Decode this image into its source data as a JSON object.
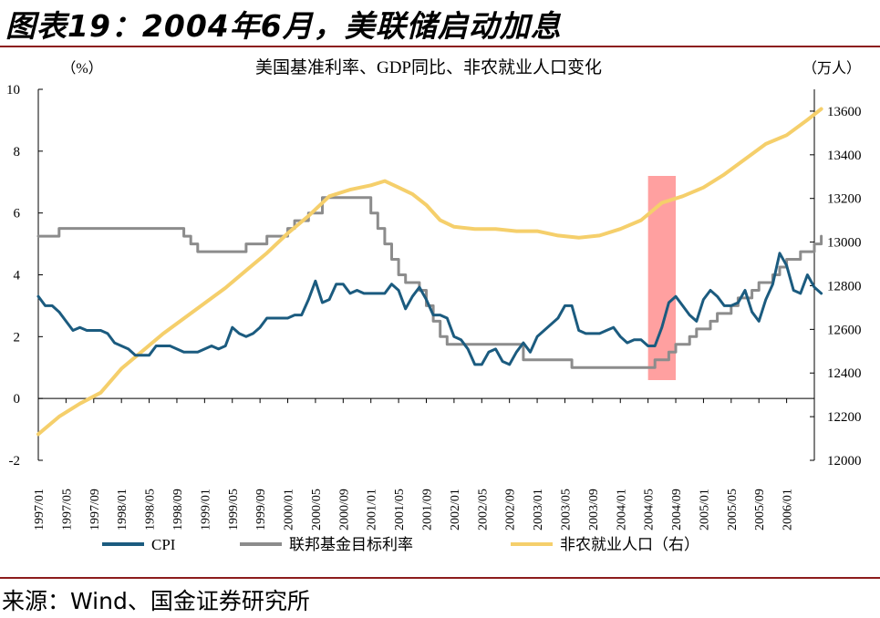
{
  "figure": {
    "title": "图表19：2004年6月，美联储启动加息",
    "source": "来源：Wind、国金证券研究所"
  },
  "chart_data": {
    "type": "line",
    "title": "美国基准利率、GDP同比、非农就业人口变化",
    "y_left_unit": "（%）",
    "y_right_unit": "（万人）",
    "y_left_range": [
      -2,
      10
    ],
    "y_left_ticks": [
      -2,
      0,
      2,
      4,
      6,
      8,
      10
    ],
    "y_right_range": [
      12000,
      13700
    ],
    "y_right_ticks": [
      12000,
      12200,
      12400,
      12600,
      12800,
      13000,
      13200,
      13400,
      13600
    ],
    "x_range": [
      "1997-01",
      "2006-05"
    ],
    "x_ticks": [
      "1997/01",
      "1997/05",
      "1997/09",
      "1998/01",
      "1998/05",
      "1998/09",
      "1999/01",
      "1999/05",
      "1999/09",
      "2000/01",
      "2000/05",
      "2000/09",
      "2001/01",
      "2001/05",
      "2001/09",
      "2002/01",
      "2002/05",
      "2002/09",
      "2003/01",
      "2003/05",
      "2003/09",
      "2004/01",
      "2004/05",
      "2004/09",
      "2005/01",
      "2005/05",
      "2005/09",
      "2006/01"
    ],
    "highlight": {
      "from": "2004-05",
      "to": "2004-09",
      "color": "#ff8080"
    },
    "legend": {
      "position": "bottom"
    },
    "series": [
      {
        "name": "CPI",
        "axis": "left",
        "color": "#1b5b7f",
        "points": [
          [
            "1997-01",
            3.3
          ],
          [
            "1997-02",
            3.0
          ],
          [
            "1997-03",
            3.0
          ],
          [
            "1997-04",
            2.8
          ],
          [
            "1997-05",
            2.5
          ],
          [
            "1997-06",
            2.2
          ],
          [
            "1997-07",
            2.3
          ],
          [
            "1997-08",
            2.2
          ],
          [
            "1997-09",
            2.2
          ],
          [
            "1997-10",
            2.2
          ],
          [
            "1997-11",
            2.1
          ],
          [
            "1997-12",
            1.8
          ],
          [
            "1998-01",
            1.7
          ],
          [
            "1998-02",
            1.6
          ],
          [
            "1998-03",
            1.4
          ],
          [
            "1998-04",
            1.4
          ],
          [
            "1998-05",
            1.4
          ],
          [
            "1998-06",
            1.7
          ],
          [
            "1998-07",
            1.7
          ],
          [
            "1998-08",
            1.7
          ],
          [
            "1998-09",
            1.6
          ],
          [
            "1998-10",
            1.5
          ],
          [
            "1998-11",
            1.5
          ],
          [
            "1998-12",
            1.5
          ],
          [
            "1999-01",
            1.6
          ],
          [
            "1999-02",
            1.7
          ],
          [
            "1999-03",
            1.6
          ],
          [
            "1999-04",
            1.7
          ],
          [
            "1999-05",
            2.3
          ],
          [
            "1999-06",
            2.1
          ],
          [
            "1999-07",
            2.0
          ],
          [
            "1999-08",
            2.1
          ],
          [
            "1999-09",
            2.3
          ],
          [
            "1999-10",
            2.6
          ],
          [
            "1999-11",
            2.6
          ],
          [
            "1999-12",
            2.6
          ],
          [
            "2000-01",
            2.6
          ],
          [
            "2000-02",
            2.7
          ],
          [
            "2000-03",
            2.7
          ],
          [
            "2000-04",
            3.2
          ],
          [
            "2000-05",
            3.8
          ],
          [
            "2000-06",
            3.1
          ],
          [
            "2000-07",
            3.2
          ],
          [
            "2000-08",
            3.7
          ],
          [
            "2000-09",
            3.7
          ],
          [
            "2000-10",
            3.4
          ],
          [
            "2000-11",
            3.5
          ],
          [
            "2000-12",
            3.4
          ],
          [
            "2001-01",
            3.4
          ],
          [
            "2001-02",
            3.4
          ],
          [
            "2001-03",
            3.4
          ],
          [
            "2001-04",
            3.7
          ],
          [
            "2001-05",
            3.5
          ],
          [
            "2001-06",
            2.9
          ],
          [
            "2001-07",
            3.3
          ],
          [
            "2001-08",
            3.6
          ],
          [
            "2001-09",
            3.2
          ],
          [
            "2001-10",
            2.7
          ],
          [
            "2001-11",
            2.7
          ],
          [
            "2001-12",
            2.6
          ],
          [
            "2002-01",
            2.0
          ],
          [
            "2002-02",
            1.9
          ],
          [
            "2002-03",
            1.6
          ],
          [
            "2002-04",
            1.1
          ],
          [
            "2002-05",
            1.1
          ],
          [
            "2002-06",
            1.5
          ],
          [
            "2002-07",
            1.6
          ],
          [
            "2002-08",
            1.2
          ],
          [
            "2002-09",
            1.1
          ],
          [
            "2002-10",
            1.5
          ],
          [
            "2002-11",
            1.8
          ],
          [
            "2002-12",
            1.5
          ],
          [
            "2003-01",
            2.0
          ],
          [
            "2003-02",
            2.2
          ],
          [
            "2003-03",
            2.4
          ],
          [
            "2003-04",
            2.6
          ],
          [
            "2003-05",
            3.0
          ],
          [
            "2003-06",
            3.0
          ],
          [
            "2003-07",
            2.2
          ],
          [
            "2003-08",
            2.1
          ],
          [
            "2003-09",
            2.1
          ],
          [
            "2003-10",
            2.1
          ],
          [
            "2003-11",
            2.2
          ],
          [
            "2003-12",
            2.3
          ],
          [
            "2004-01",
            2.0
          ],
          [
            "2004-02",
            1.8
          ],
          [
            "2004-03",
            1.9
          ],
          [
            "2004-04",
            1.9
          ],
          [
            "2004-05",
            1.7
          ],
          [
            "2004-06",
            1.7
          ],
          [
            "2004-07",
            2.3
          ],
          [
            "2004-08",
            3.1
          ],
          [
            "2004-09",
            3.3
          ],
          [
            "2004-10",
            3.0
          ],
          [
            "2004-11",
            2.7
          ],
          [
            "2004-12",
            2.5
          ],
          [
            "2005-01",
            3.2
          ],
          [
            "2005-02",
            3.5
          ],
          [
            "2005-03",
            3.3
          ],
          [
            "2005-04",
            3.0
          ],
          [
            "2005-05",
            3.0
          ],
          [
            "2005-06",
            3.1
          ],
          [
            "2005-07",
            3.5
          ],
          [
            "2005-08",
            2.8
          ],
          [
            "2005-09",
            2.5
          ],
          [
            "2005-10",
            3.2
          ],
          [
            "2005-11",
            3.7
          ],
          [
            "2005-12",
            4.7
          ],
          [
            "2006-01",
            4.3
          ],
          [
            "2006-02",
            3.5
          ],
          [
            "2006-03",
            3.4
          ],
          [
            "2006-04",
            4.0
          ],
          [
            "2006-05",
            3.6
          ],
          [
            "2006-06",
            3.4
          ]
        ]
      },
      {
        "name": "联邦基金目标利率",
        "axis": "left",
        "color": "#8c8c8c",
        "points": [
          [
            "1997-01",
            5.25
          ],
          [
            "1997-03",
            5.25
          ],
          [
            "1997-04",
            5.5
          ],
          [
            "1998-09",
            5.5
          ],
          [
            "1998-10",
            5.25
          ],
          [
            "1998-11",
            5.0
          ],
          [
            "1998-12",
            4.75
          ],
          [
            "1999-06",
            4.75
          ],
          [
            "1999-07",
            5.0
          ],
          [
            "1999-09",
            5.0
          ],
          [
            "1999-10",
            5.25
          ],
          [
            "1999-12",
            5.25
          ],
          [
            "2000-01",
            5.5
          ],
          [
            "2000-02",
            5.75
          ],
          [
            "2000-03",
            5.75
          ],
          [
            "2000-04",
            6.0
          ],
          [
            "2000-05",
            6.0
          ],
          [
            "2000-06",
            6.5
          ],
          [
            "2000-12",
            6.5
          ],
          [
            "2001-01",
            6.0
          ],
          [
            "2001-02",
            5.5
          ],
          [
            "2001-03",
            5.0
          ],
          [
            "2001-04",
            4.5
          ],
          [
            "2001-05",
            4.0
          ],
          [
            "2001-06",
            3.75
          ],
          [
            "2001-07",
            3.75
          ],
          [
            "2001-08",
            3.5
          ],
          [
            "2001-09",
            3.0
          ],
          [
            "2001-10",
            2.5
          ],
          [
            "2001-11",
            2.0
          ],
          [
            "2001-12",
            1.75
          ],
          [
            "2002-10",
            1.75
          ],
          [
            "2002-11",
            1.25
          ],
          [
            "2003-05",
            1.25
          ],
          [
            "2003-06",
            1.0
          ],
          [
            "2004-05",
            1.0
          ],
          [
            "2004-06",
            1.25
          ],
          [
            "2004-07",
            1.25
          ],
          [
            "2004-08",
            1.5
          ],
          [
            "2004-09",
            1.75
          ],
          [
            "2004-10",
            1.75
          ],
          [
            "2004-11",
            2.0
          ],
          [
            "2004-12",
            2.25
          ],
          [
            "2005-01",
            2.25
          ],
          [
            "2005-02",
            2.5
          ],
          [
            "2005-03",
            2.75
          ],
          [
            "2005-04",
            2.75
          ],
          [
            "2005-05",
            3.0
          ],
          [
            "2005-06",
            3.25
          ],
          [
            "2005-07",
            3.25
          ],
          [
            "2005-08",
            3.5
          ],
          [
            "2005-09",
            3.75
          ],
          [
            "2005-10",
            3.75
          ],
          [
            "2005-11",
            4.0
          ],
          [
            "2005-12",
            4.25
          ],
          [
            "2006-01",
            4.5
          ],
          [
            "2006-02",
            4.5
          ],
          [
            "2006-03",
            4.75
          ],
          [
            "2006-04",
            4.75
          ],
          [
            "2006-05",
            5.0
          ],
          [
            "2006-06",
            5.25
          ]
        ]
      },
      {
        "name": "非农就业人口（右）",
        "axis": "right",
        "color": "#f5cf6b",
        "points": [
          [
            "1997-01",
            12120
          ],
          [
            "1997-04",
            12200
          ],
          [
            "1997-07",
            12260
          ],
          [
            "1997-10",
            12310
          ],
          [
            "1998-01",
            12420
          ],
          [
            "1998-04",
            12500
          ],
          [
            "1998-07",
            12580
          ],
          [
            "1998-10",
            12650
          ],
          [
            "1999-01",
            12720
          ],
          [
            "1999-04",
            12790
          ],
          [
            "1999-07",
            12870
          ],
          [
            "1999-10",
            12950
          ],
          [
            "2000-01",
            13040
          ],
          [
            "2000-04",
            13120
          ],
          [
            "2000-07",
            13210
          ],
          [
            "2000-10",
            13240
          ],
          [
            "2001-01",
            13260
          ],
          [
            "2001-03",
            13280
          ],
          [
            "2001-05",
            13250
          ],
          [
            "2001-07",
            13220
          ],
          [
            "2001-09",
            13170
          ],
          [
            "2001-11",
            13100
          ],
          [
            "2002-01",
            13070
          ],
          [
            "2002-04",
            13060
          ],
          [
            "2002-07",
            13060
          ],
          [
            "2002-10",
            13050
          ],
          [
            "2003-01",
            13050
          ],
          [
            "2003-04",
            13030
          ],
          [
            "2003-07",
            13020
          ],
          [
            "2003-10",
            13030
          ],
          [
            "2004-01",
            13060
          ],
          [
            "2004-04",
            13100
          ],
          [
            "2004-07",
            13180
          ],
          [
            "2004-10",
            13210
          ],
          [
            "2005-01",
            13250
          ],
          [
            "2005-04",
            13310
          ],
          [
            "2005-07",
            13380
          ],
          [
            "2005-10",
            13450
          ],
          [
            "2006-01",
            13490
          ],
          [
            "2006-04",
            13560
          ],
          [
            "2006-06",
            13610
          ]
        ]
      }
    ]
  }
}
